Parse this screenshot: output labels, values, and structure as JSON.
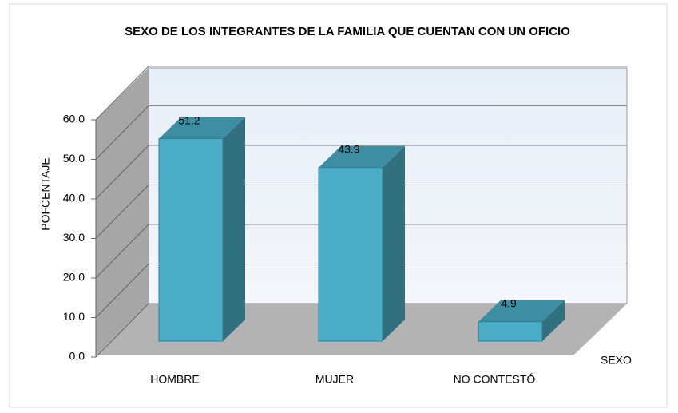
{
  "chart_data": {
    "type": "bar3d",
    "title": "SEXO DE LOS INTEGRANTES DE LA FAMILIA QUE CUENTAN CON UN OFICIO",
    "ylabel": "POFCENTAJE",
    "xlabel": "SEXO",
    "categories": [
      "HOMBRE",
      "MUJER",
      "NO CONTESTÓ"
    ],
    "values": [
      51.2,
      43.9,
      4.9
    ],
    "color": "#4bacc6",
    "ylim": [
      0,
      60
    ],
    "yticks": [
      {
        "value": 0,
        "label": "0.0"
      },
      {
        "value": 10,
        "label": "10.0"
      },
      {
        "value": 20,
        "label": "20.0"
      },
      {
        "value": 30,
        "label": "30.0"
      },
      {
        "value": 40,
        "label": "40.0"
      },
      {
        "value": 50,
        "label": "50.0"
      },
      {
        "value": 60,
        "label": "60.0"
      }
    ],
    "grid": true
  }
}
